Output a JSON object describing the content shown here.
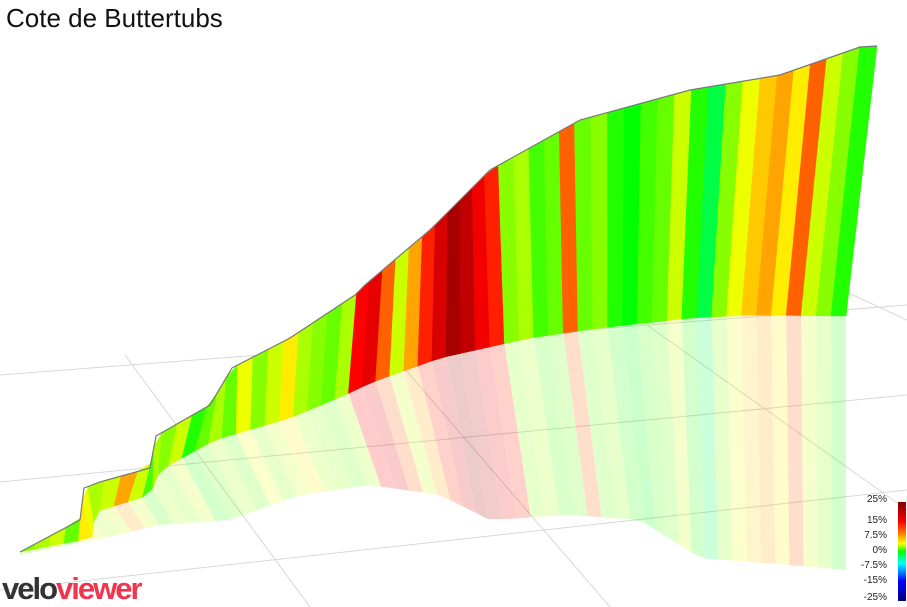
{
  "chart_data": {
    "type": "area",
    "title": "Cote de Buttertubs",
    "description_units": "gradient %",
    "gradients": [
      4,
      5,
      6,
      3,
      8,
      7,
      5,
      6,
      10,
      6,
      2,
      5,
      4,
      6,
      1,
      3,
      5,
      3,
      7,
      4,
      6,
      8,
      5,
      4,
      3,
      5,
      15,
      17,
      12,
      6,
      10,
      14,
      18,
      22,
      20,
      16,
      14,
      4,
      5,
      2,
      3,
      12,
      3,
      4,
      1,
      0,
      2,
      3,
      6,
      1,
      -2,
      4,
      7,
      9,
      10,
      8,
      12,
      6,
      4,
      1
    ],
    "legend": {
      "ticks": [
        "25%",
        "15%",
        "7.5%",
        "0%",
        "-7.5%",
        "-15%",
        "-25%"
      ],
      "range": [
        -25,
        25
      ]
    }
  },
  "logo": {
    "part1": "velo",
    "part2": "viewer"
  }
}
